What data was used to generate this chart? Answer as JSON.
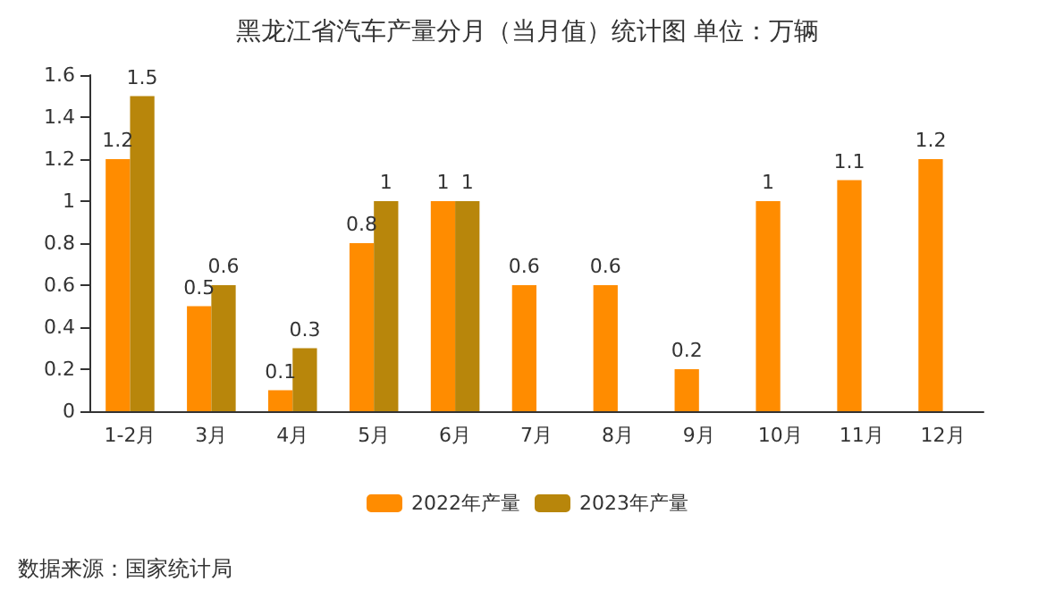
{
  "chart_data": {
    "type": "bar",
    "title": "黑龙江省汽车产量分月（当月值）统计图 单位：万辆",
    "categories": [
      "1-2月",
      "3月",
      "4月",
      "5月",
      "6月",
      "7月",
      "8月",
      "9月",
      "10月",
      "11月",
      "12月"
    ],
    "series": [
      {
        "name": "2022年产量",
        "color": "#ff8c00",
        "values": [
          1.2,
          0.5,
          0.1,
          0.8,
          1,
          0.6,
          0.6,
          0.2,
          1,
          1.1,
          1.2
        ]
      },
      {
        "name": "2023年产量",
        "color": "#b8860b",
        "values": [
          1.5,
          0.6,
          0.3,
          1,
          1,
          null,
          null,
          null,
          null,
          null,
          null
        ]
      }
    ],
    "ylim": [
      0,
      1.6
    ],
    "yticks": [
      0,
      0.2,
      0.4,
      0.6,
      0.8,
      1,
      1.2,
      1.4,
      1.6
    ],
    "data_labels": true,
    "legend": "bottom",
    "grid": false,
    "annotations": [
      "数据来源：国家统计局"
    ]
  }
}
